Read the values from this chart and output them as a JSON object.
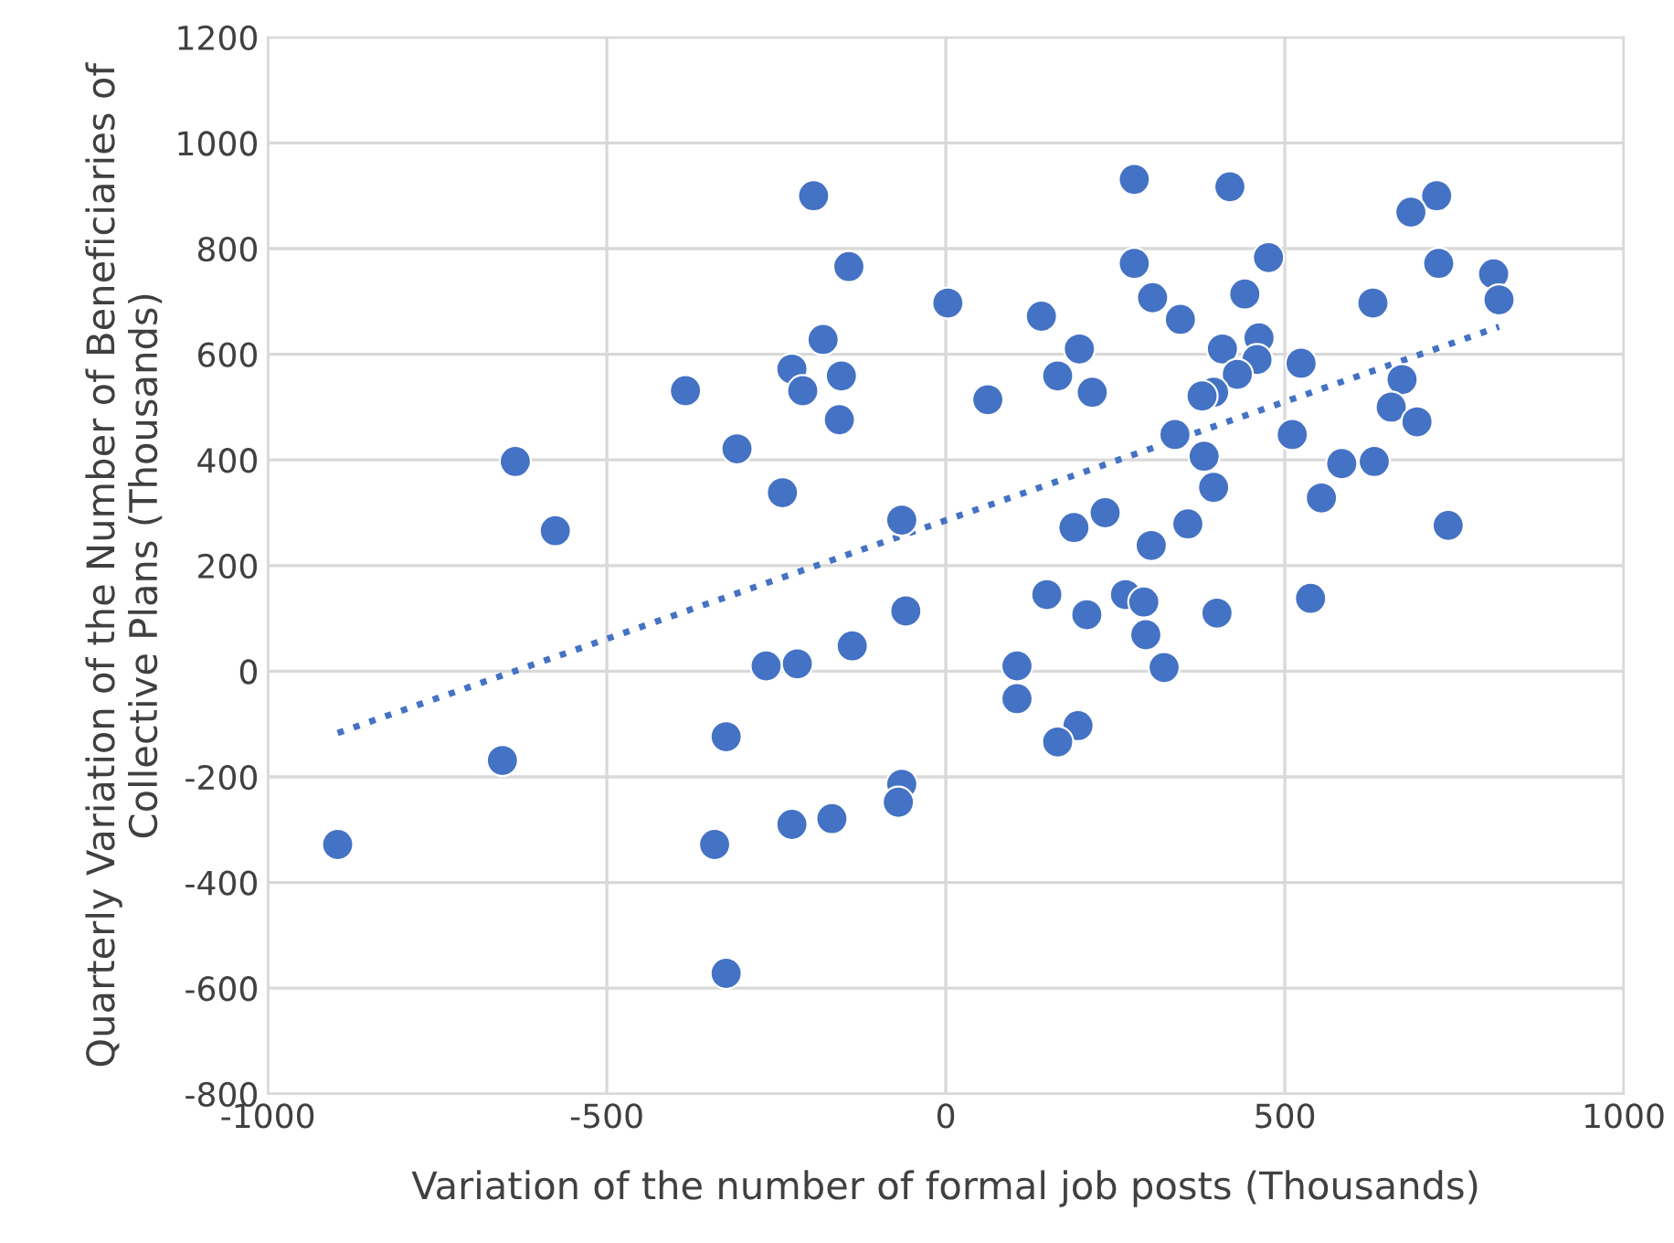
{
  "chart_data": {
    "type": "scatter",
    "xlabel": "Variation of the number of formal job posts (Thousands)",
    "ylabel": "Quarterly Variation of the Number of Beneficiaries of Collective Plans (Thousands)",
    "series": [
      {
        "color": "#4472c4",
        "marker": "circle",
        "x": [
          -195,
          -143,
          3,
          -181,
          -227,
          -211,
          -154,
          -157,
          -384,
          -308,
          -241,
          -635,
          -576,
          -65,
          -59,
          -138,
          -265,
          -219,
          -324,
          -654,
          -897,
          -65,
          -70,
          -227,
          -168,
          -341,
          -324,
          278,
          419,
          724,
          686,
          278,
          476,
          727,
          808,
          816,
          305,
          441,
          630,
          141,
          346,
          197,
          408,
          462,
          459,
          524,
          430,
          165,
          216,
          62,
          395,
          378,
          673,
          657,
          695,
          338,
          381,
          511,
          395,
          584,
          632,
          554,
          235,
          189,
          357,
          303,
          741,
          149,
          265,
          292,
          208,
          400,
          538,
          295,
          322,
          105,
          105,
          195,
          165
        ],
        "values": [
          900,
          766,
          697,
          628,
          572,
          531,
          559,
          476,
          531,
          421,
          338,
          397,
          266,
          286,
          114,
          48,
          10,
          14,
          -124,
          -169,
          -328,
          -214,
          -248,
          -290,
          -279,
          -328,
          -572,
          931,
          917,
          900,
          869,
          772,
          783,
          772,
          752,
          703,
          707,
          714,
          697,
          672,
          666,
          610,
          610,
          631,
          590,
          583,
          562,
          559,
          528,
          514,
          528,
          521,
          552,
          500,
          472,
          448,
          407,
          448,
          348,
          393,
          397,
          328,
          300,
          272,
          279,
          238,
          276,
          145,
          145,
          131,
          107,
          110,
          138,
          69,
          7,
          10,
          -52,
          -103,
          -134
        ]
      },
      {
        "type": "line",
        "color": "#4472c4",
        "line_style": "dotted",
        "marker": "none",
        "x": [
          -897,
          816
        ],
        "values": [
          -117,
          652
        ]
      }
    ],
    "xlim": [
      -1000,
      1000
    ],
    "xticks": [
      -1000,
      -500,
      0,
      500,
      1000
    ],
    "ylim": [
      -800,
      1200
    ],
    "yticks": [
      -800,
      -600,
      -400,
      -200,
      0,
      200,
      400,
      600,
      800,
      1000,
      1200
    ],
    "grid": true,
    "legend": false
  }
}
